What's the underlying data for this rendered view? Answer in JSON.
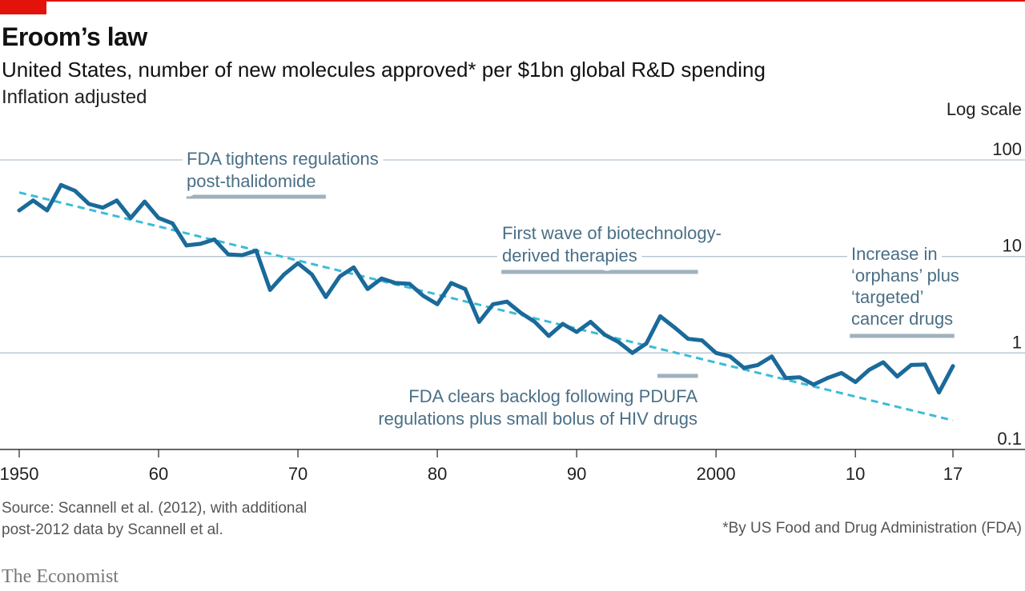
{
  "header": {
    "title": "Eroom’s law",
    "subtitle": "United States, number of new molecules approved* per $1bn global R&D spending",
    "note": "Inflation adjusted",
    "scale_label": "Log scale"
  },
  "colors": {
    "series": "#1a6a9a",
    "trend": "#3bbdd6",
    "grid": "#b3c4cf",
    "annotation_text": "#4a6f86",
    "annotation_bar": "#9fb1bd",
    "accent": "#e3120b"
  },
  "chart_data": {
    "type": "line",
    "title": "Eroom’s law",
    "subtitle": "United States, number of new molecules approved* per $1bn global R&D spending",
    "yscale": "log",
    "ylim": [
      0.1,
      100
    ],
    "xlim": [
      1950,
      2017
    ],
    "grid": "horizontal",
    "x_ticks": [
      1950,
      1960,
      1970,
      1980,
      1990,
      2000,
      2010,
      2017
    ],
    "x_tick_labels": [
      "1950",
      "60",
      "70",
      "80",
      "90",
      "2000",
      "10",
      "17"
    ],
    "y_ticks": [
      0.1,
      1,
      10,
      100
    ],
    "y_tick_labels": [
      "0.1",
      "1",
      "10",
      "100"
    ],
    "series": [
      {
        "type": "line",
        "x": [
          1950,
          1951,
          1952,
          1953,
          1954,
          1955,
          1956,
          1957,
          1958,
          1959,
          1960,
          1961,
          1962,
          1963,
          1964,
          1965,
          1966,
          1967,
          1968,
          1969,
          1970,
          1971,
          1972,
          1973,
          1974,
          1975,
          1976,
          1977,
          1978,
          1979,
          1980,
          1981,
          1982,
          1983,
          1984,
          1985,
          1986,
          1987,
          1988,
          1989,
          1990,
          1991,
          1992,
          1993,
          1994,
          1995,
          1996,
          1997,
          1998,
          1999,
          2000,
          2001,
          2002,
          2003,
          2004,
          2005,
          2006,
          2007,
          2008,
          2009,
          2010,
          2011,
          2012,
          2013,
          2014,
          2015,
          2016,
          2017
        ],
        "values": [
          30,
          38,
          30,
          55,
          48,
          35,
          32,
          38,
          25,
          37,
          25,
          22,
          13,
          13.5,
          15,
          10.5,
          10.3,
          11.5,
          4.5,
          6.5,
          8.5,
          6.5,
          3.8,
          6.2,
          7.7,
          4.6,
          5.9,
          5.3,
          5.2,
          3.9,
          3.2,
          5.3,
          4.6,
          2.1,
          3.2,
          3.4,
          2.6,
          2.1,
          1.5,
          2.0,
          1.65,
          2.1,
          1.55,
          1.3,
          1.0,
          1.25,
          2.4,
          1.85,
          1.4,
          1.35,
          1.0,
          0.92,
          0.7,
          0.75,
          0.92,
          0.55,
          0.56,
          0.47,
          0.55,
          0.62,
          0.5,
          0.67,
          0.8,
          0.57,
          0.75,
          0.76,
          0.39,
          0.73
        ]
      },
      {
        "type": "trend",
        "x": [
          1950,
          2017
        ],
        "values": [
          46,
          0.2
        ]
      }
    ],
    "annotations": [
      {
        "lines": [
          "FDA tightens regulations",
          "post-thalidomide"
        ],
        "period": [
          1962,
          1972
        ]
      },
      {
        "lines": [
          "First wave of biotechnology-",
          "derived therapies"
        ],
        "period": [
          1984.6,
          1998.7
        ]
      },
      {
        "lines": [
          "FDA clears backlog following PDUFA",
          "regulations plus small bolus of HIV drugs"
        ],
        "period": [
          1995.8,
          1998.7
        ]
      },
      {
        "lines": [
          "Increase in",
          "‘orphans’ plus",
          "‘targeted’",
          "cancer drugs"
        ],
        "period": [
          2009.6,
          2017.1
        ]
      }
    ]
  },
  "footer": {
    "source": "Source: Scannell et al. (2012), with additional post-2012 data by Scannell et al.",
    "footnote": "*By US Food and Drug Administration (FDA)",
    "brand": "The Economist"
  }
}
